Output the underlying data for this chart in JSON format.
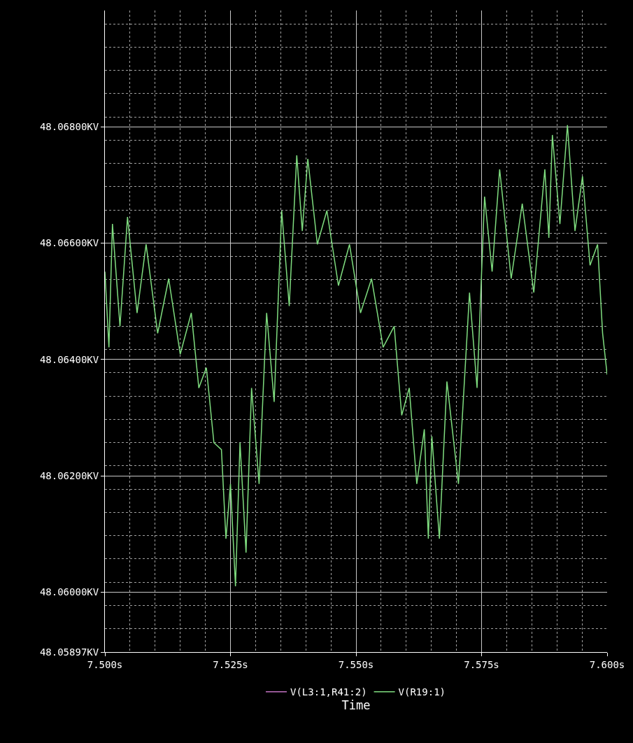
{
  "chart_data": {
    "type": "line",
    "xlabel": "Time",
    "x": [
      7.5,
      7.5008,
      7.5015,
      7.503,
      7.5045,
      7.5064,
      7.5082,
      7.5105,
      7.5127,
      7.515,
      7.5172,
      7.5187,
      7.5202,
      7.5217,
      7.5232,
      7.5241,
      7.525,
      7.526,
      7.5269,
      7.5281,
      7.5292,
      7.5307,
      7.5322,
      7.5337,
      7.5352,
      7.5367,
      7.5382,
      7.5393,
      7.5404,
      7.5423,
      7.5442,
      7.5465,
      7.5487,
      7.5509,
      7.5531,
      7.5554,
      7.5576,
      7.5591,
      7.5606,
      7.5621,
      7.5636,
      7.5644,
      7.5651,
      7.5666,
      7.5681,
      7.5704,
      7.5726,
      7.5741,
      7.5756,
      7.5771,
      7.5786,
      7.5809,
      7.5831,
      7.5854,
      7.5876,
      7.5884,
      7.5891,
      7.5906,
      7.5921,
      7.5936,
      7.5951,
      7.5966,
      7.5981,
      7.5991,
      7.6
    ],
    "series": [
      {
        "name": "V(L3:1,R41:2)",
        "color": "#c070c0",
        "values": [
          null,
          null,
          null,
          null,
          null,
          null,
          null,
          null,
          null,
          null,
          null,
          null,
          null,
          null,
          null,
          null,
          null,
          null,
          null,
          null,
          null,
          null,
          null,
          null,
          null,
          null,
          null,
          null,
          null,
          null,
          null,
          null,
          null,
          null,
          null,
          null,
          null,
          null,
          null,
          null,
          null,
          null,
          null,
          null,
          null,
          null,
          null,
          null,
          null,
          null,
          null,
          null,
          null,
          null,
          null,
          null,
          null,
          null,
          null,
          null,
          null,
          null,
          null,
          null,
          null
        ]
      },
      {
        "name": "V(R19:1)",
        "color": "#7fdc7f",
        "values": [
          48.06551,
          48.06421,
          48.06633,
          48.06457,
          48.06645,
          48.0648,
          48.06598,
          48.06445,
          48.06539,
          48.06409,
          48.0648,
          48.06351,
          48.06386,
          48.06257,
          48.06245,
          48.06092,
          48.06186,
          48.0601,
          48.06257,
          48.06068,
          48.06351,
          48.06186,
          48.0648,
          48.06327,
          48.06656,
          48.06492,
          48.06751,
          48.06621,
          48.06745,
          48.06598,
          48.06656,
          48.06527,
          48.06598,
          48.0648,
          48.06539,
          48.06421,
          48.06457,
          48.06304,
          48.06351,
          48.06186,
          48.0628,
          48.06092,
          48.06268,
          48.06092,
          48.06362,
          48.06186,
          48.06515,
          48.06351,
          48.0668,
          48.06551,
          48.06727,
          48.06539,
          48.06668,
          48.06515,
          48.06727,
          48.06609,
          48.06786,
          48.06633,
          48.06803,
          48.06621,
          48.06715,
          48.06562,
          48.06598,
          48.06445,
          48.06374
        ]
      }
    ],
    "xlim": [
      7.5,
      7.6
    ],
    "xticks": [
      {
        "value": 7.5,
        "label": "7.500s"
      },
      {
        "value": 7.525,
        "label": "7.525s"
      },
      {
        "value": 7.55,
        "label": "7.550s"
      },
      {
        "value": 7.575,
        "label": "7.575s"
      },
      {
        "value": 7.6,
        "label": "7.600s"
      }
    ],
    "ylim": [
      48.05897,
      48.07
    ],
    "yticks": [
      {
        "value": 48.05897,
        "label": "48.05897KV"
      },
      {
        "value": 48.06,
        "label": "48.06000KV"
      },
      {
        "value": 48.062,
        "label": "48.06200KV"
      },
      {
        "value": 48.064,
        "label": "48.06400KV"
      },
      {
        "value": 48.066,
        "label": "48.06600KV"
      },
      {
        "value": 48.068,
        "label": "48.06800KV"
      }
    ],
    "grid": true,
    "legend": "bottom",
    "line_style": "solid"
  }
}
